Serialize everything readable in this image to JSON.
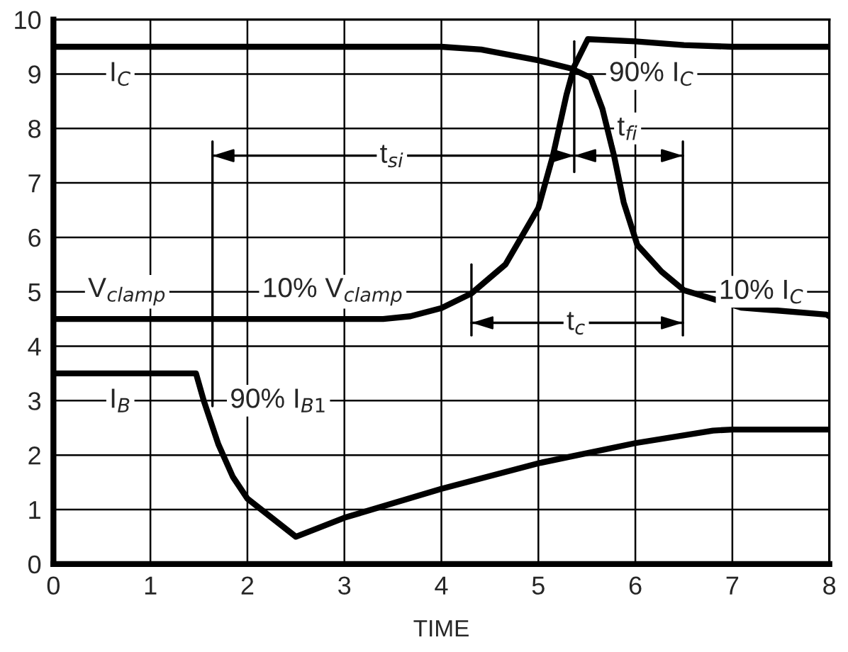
{
  "chart_data": {
    "type": "line",
    "xlabel": "TIME",
    "xlim": [
      0,
      8
    ],
    "ylim": [
      0,
      10
    ],
    "xticks": [
      0,
      1,
      2,
      3,
      4,
      5,
      6,
      7,
      8
    ],
    "yticks": [
      0,
      1,
      2,
      3,
      4,
      5,
      6,
      7,
      8,
      9,
      10
    ],
    "grid": true,
    "legend": false,
    "series": [
      {
        "color": "#000000",
        "x": [
          0,
          4.0,
          4.41,
          5.0,
          5.34,
          5.54,
          5.66,
          5.78,
          5.88,
          6.02,
          6.27,
          6.5,
          7.09,
          7.97,
          8
        ],
        "values": [
          9.5,
          9.5,
          9.45,
          9.25,
          9.1,
          8.93,
          8.36,
          7.5,
          6.64,
          5.86,
          5.37,
          5.03,
          4.71,
          4.58,
          4.55
        ]
      },
      {
        "color": "#000000",
        "x": [
          0,
          3.4,
          3.68,
          4.0,
          4.31,
          4.66,
          5.0,
          5.15,
          5.29,
          5.37,
          5.51,
          6.0,
          6.5,
          7.0,
          8
        ],
        "values": [
          4.5,
          4.5,
          4.55,
          4.7,
          4.97,
          5.5,
          6.54,
          7.5,
          8.62,
          9.14,
          9.64,
          9.6,
          9.53,
          9.5,
          9.5
        ]
      },
      {
        "color": "#000000",
        "x": [
          0,
          1.47,
          1.55,
          1.7,
          1.85,
          2.0,
          2.5,
          3.0,
          4.0,
          5.0,
          6.0,
          6.8,
          7.0,
          8
        ],
        "values": [
          3.5,
          3.5,
          3.0,
          2.2,
          1.6,
          1.2,
          0.5,
          0.85,
          1.38,
          1.85,
          2.22,
          2.45,
          2.47,
          2.47
        ]
      },
      {
        "color": "#000000",
        "line_style": "solid",
        "x": [
          1.64,
          1.64
        ],
        "values": [
          2.9,
          7.76
        ]
      },
      {
        "color": "#000000",
        "line_style": "solid",
        "x": [
          5.37,
          5.37
        ],
        "values": [
          7.2,
          9.6
        ]
      },
      {
        "color": "#000000",
        "line_style": "solid",
        "x": [
          4.31,
          4.31
        ],
        "values": [
          4.2,
          5.5
        ]
      },
      {
        "color": "#000000",
        "line_style": "solid",
        "x": [
          6.49,
          6.49
        ],
        "values": [
          4.2,
          7.76
        ]
      },
      {
        "color": "#000000",
        "line_style": "solid",
        "x": [
          1.64,
          5.37,
          6.49
        ],
        "values": [
          7.5,
          7.5,
          7.5
        ]
      },
      {
        "color": "#000000",
        "line_style": "solid",
        "x": [
          4.31,
          6.49
        ],
        "values": [
          4.43,
          4.43
        ]
      }
    ],
    "annotations": [
      {
        "text": "I$_{C}$",
        "x": 0.69,
        "y": 9
      },
      "V$_{clamp}$",
      "10% V$_{clamp}$",
      {
        "text": "t$_{si}$",
        "x": 3.49,
        "y": 7.5
      },
      "90% I$_{C}$",
      {
        "text": "t$_{fi}$",
        "x": 5.92,
        "y": 8
      },
      "10% I$_{C}$",
      {
        "text": "t$_{c}$",
        "x": 5.39,
        "y": 4.43
      },
      {
        "text": "I$_{B}$",
        "x": 0.69,
        "y": 3
      },
      "90% I$_{B1}$"
    ]
  }
}
